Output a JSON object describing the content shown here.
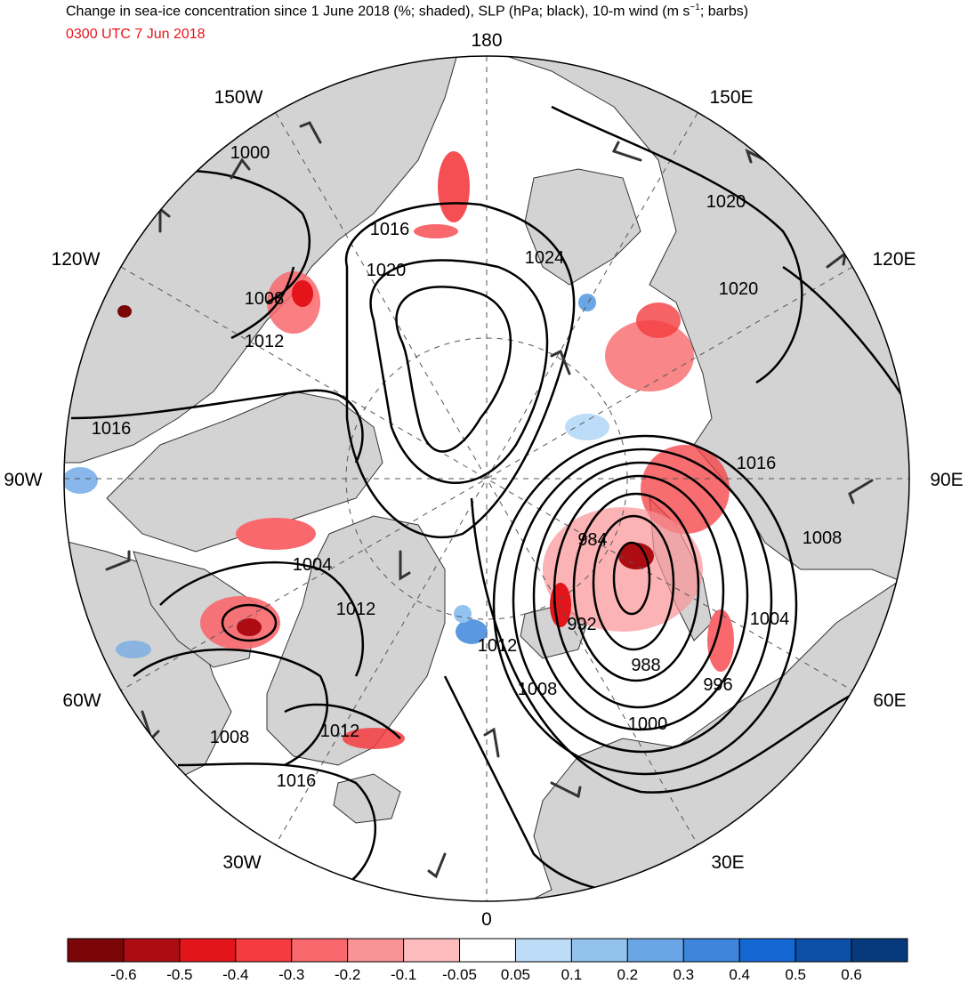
{
  "title": {
    "main_text": "Change in sea-ice concentration since 1 June 2018 (%; shaded), SLP (hPa; black), 10-m wind (m s",
    "superscript": "−1",
    "tail": "; barbs)"
  },
  "timestamp": "0300 UTC 7 Jun 2018",
  "longitude_labels": [
    "180",
    "150E",
    "120E",
    "90E",
    "60E",
    "30E",
    "0",
    "30W",
    "60W",
    "90W",
    "120W",
    "150W"
  ],
  "slp_contour_labels": [
    "1000",
    "1016",
    "1020",
    "1024",
    "1020",
    "1020",
    "1008",
    "1012",
    "1016",
    "1016",
    "1004",
    "1012",
    "984",
    "992",
    "988",
    "1008",
    "1004",
    "996",
    "1000",
    "1012",
    "1008",
    "1008",
    "1012",
    "1016"
  ],
  "colorbar": {
    "tick_labels": [
      "-0.6",
      "-0.5",
      "-0.4",
      "-0.3",
      "-0.2",
      "-0.1",
      "-0.05",
      "0.05",
      "0.1",
      "0.2",
      "0.3",
      "0.4",
      "0.5",
      "0.6"
    ],
    "colors": [
      "#7a0608",
      "#ad0d12",
      "#e3141a",
      "#f43c40",
      "#f8686c",
      "#fa9396",
      "#fcbcbe",
      "#ffffff",
      "#bddcf8",
      "#93c2ef",
      "#6aa6e6",
      "#3d86dc",
      "#1467d3",
      "#0c4fa6",
      "#073a7c"
    ]
  },
  "colors": {
    "land": "#d3d3d3",
    "ocean": "#ffffff",
    "contour": "#000000",
    "barb": "#333333",
    "timestamp": "#e8141a"
  }
}
